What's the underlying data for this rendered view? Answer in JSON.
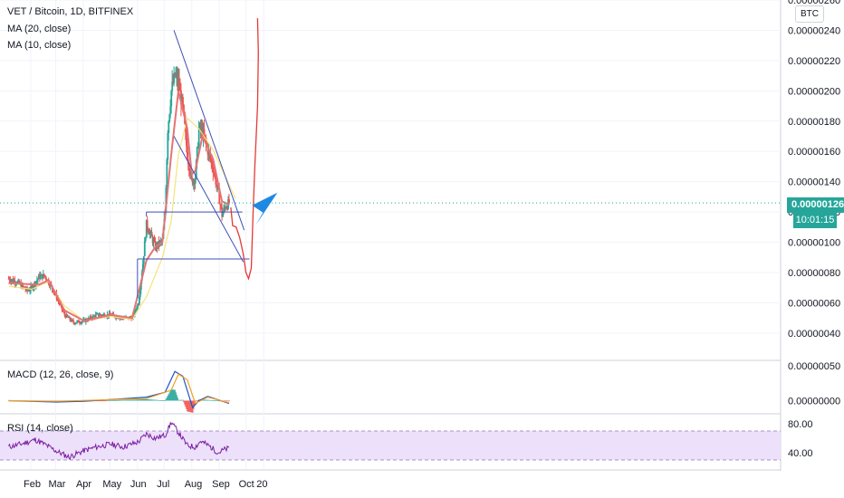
{
  "legend": {
    "title": "VET / Bitcoin, 1D, BITFINEX",
    "ma20": "MA (20, close)",
    "ma10": "MA (10, close)",
    "macd": "MACD (12, 26, close, 9)",
    "rsi": "RSI (14, close)"
  },
  "currency": "BTC",
  "last_price": "0.00000126",
  "countdown": "10:01:15",
  "colors": {
    "up": "#26a69a",
    "down": "#ef5350",
    "ma20": "#e57373",
    "ma10": "#f5e37a",
    "trendline": "#3f51b5",
    "drawing": "#e53935",
    "arrow": "#1e88e5",
    "macd_line": "#1e53c9",
    "signal_line": "#f0a020",
    "rsi_line": "#7b1fa2",
    "rsi_band": "#ede0fa"
  },
  "chart_data": {
    "type": "candlestick",
    "title": "VET / Bitcoin, 1D, BITFINEX",
    "ylim": [
      2.2e-07,
      2.6e-06
    ],
    "y_ticks": [
      "0.00000040",
      "0.00000060",
      "0.00000080",
      "0.00000100",
      "0.00000120",
      "0.00000140",
      "0.00000160",
      "0.00000180",
      "0.00000200",
      "0.00000220",
      "0.00000240",
      "0.00000260"
    ],
    "x_ticks": [
      "Feb",
      "Mar",
      "Apr",
      "May",
      "Jun",
      "Jul",
      "Aug",
      "Sep",
      "Oct",
      "20"
    ],
    "close_points": [
      [
        "Jan 6",
        7.6e-07
      ],
      [
        "Jan 15",
        7.4e-07
      ],
      [
        "Jan 27",
        6.8e-07
      ],
      [
        "Feb 1",
        7e-07
      ],
      [
        "Feb 9",
        7.7e-07
      ],
      [
        "Feb 15",
        7.8e-07
      ],
      [
        "Feb 20",
        7.4e-07
      ],
      [
        "Mar 1",
        6.4e-07
      ],
      [
        "Mar 10",
        5.2e-07
      ],
      [
        "Mar 20",
        4.7e-07
      ],
      [
        "Apr 1",
        4.8e-07
      ],
      [
        "Apr 15",
        5.2e-07
      ],
      [
        "May 1",
        5.2e-07
      ],
      [
        "May 15",
        5e-07
      ],
      [
        "May 25",
        5e-07
      ],
      [
        "Jun 1",
        6e-07
      ],
      [
        "Jun 6",
        8.6e-07
      ],
      [
        "Jun 10",
        1.12e-06
      ],
      [
        "Jun 20",
        9.7e-07
      ],
      [
        "Jun 28",
        1.01e-06
      ],
      [
        "Jul 1",
        1.2e-06
      ],
      [
        "Jul 4",
        1.75e-06
      ],
      [
        "Jul 8",
        2e-06
      ],
      [
        "Jul 12",
        2.1e-06
      ],
      [
        "Jul 16",
        2.05e-06
      ],
      [
        "Jul 21",
        1.88e-06
      ],
      [
        "Jul 26",
        1.58e-06
      ],
      [
        "Jul 31",
        1.4e-06
      ],
      [
        "Aug 4",
        1.43e-06
      ],
      [
        "Aug 8",
        1.75e-06
      ],
      [
        "Aug 12",
        1.73e-06
      ],
      [
        "Aug 18",
        1.61e-06
      ],
      [
        "Aug 24",
        1.49e-06
      ],
      [
        "Aug 30",
        1.32e-06
      ],
      [
        "Sep 3",
        1.18e-06
      ],
      [
        "Sep 7",
        1.24e-06
      ],
      [
        "Sep 11",
        1.26e-06
      ]
    ],
    "ma20_points": [
      [
        "Jan 6",
        7.1e-07
      ],
      [
        "Feb 1",
        6.9e-07
      ],
      [
        "Feb 20",
        7.4e-07
      ],
      [
        "Mar 10",
        5.8e-07
      ],
      [
        "Apr 1",
        4.8e-07
      ],
      [
        "May 1",
        5.1e-07
      ],
      [
        "May 25",
        4.9e-07
      ],
      [
        "Jun 10",
        6.4e-07
      ],
      [
        "Jun 28",
        9e-07
      ],
      [
        "Jul 8",
        1.14e-06
      ],
      [
        "Jul 16",
        1.58e-06
      ],
      [
        "Jul 26",
        1.82e-06
      ],
      [
        "Aug 8",
        1.75e-06
      ],
      [
        "Aug 24",
        1.61e-06
      ],
      [
        "Sep 11",
        1.38e-06
      ],
      [
        "Sep 18",
        1.29e-06
      ]
    ],
    "ma10_points": [
      [
        "Jan 6",
        7.3e-07
      ],
      [
        "Feb 9",
        7.2e-07
      ],
      [
        "Feb 20",
        7.5e-07
      ],
      [
        "Mar 10",
        5.5e-07
      ],
      [
        "Apr 1",
        4.8e-07
      ],
      [
        "May 1",
        5.2e-07
      ],
      [
        "May 25",
        5e-07
      ],
      [
        "Jun 10",
        8.8e-07
      ],
      [
        "Jun 20",
        9.7e-07
      ],
      [
        "Jun 28",
        1e-06
      ],
      [
        "Jul 8",
        1.58e-06
      ],
      [
        "Jul 16",
        2e-06
      ],
      [
        "Jul 26",
        1.75e-06
      ],
      [
        "Jul 31",
        1.45e-06
      ],
      [
        "Aug 4",
        1.47e-06
      ],
      [
        "Aug 12",
        1.7e-06
      ],
      [
        "Aug 24",
        1.55e-06
      ],
      [
        "Sep 3",
        1.27e-06
      ],
      [
        "Sep 11",
        1.25e-06
      ]
    ],
    "macd": {
      "ylim": [
        -1.5e-07,
        5e-07
      ],
      "y_ticks": [
        "0.00000000",
        "0.00000050"
      ],
      "macd_points": [
        [
          "Jan 6",
          0.0
        ],
        [
          "Mar 1",
          -2e-08
        ],
        [
          "Apr 1",
          -1e-08
        ],
        [
          "Jun 10",
          5e-08
        ],
        [
          "Jul 1",
          1.2e-07
        ],
        [
          "Jul 12",
          4.2e-07
        ],
        [
          "Jul 21",
          3.5e-07
        ],
        [
          "Aug 1",
          -1e-07
        ],
        [
          "Aug 8",
          0.0
        ],
        [
          "Aug 18",
          6e-08
        ],
        [
          "Sep 11",
          -4e-08
        ]
      ],
      "signal_points": [
        [
          "Jan 6",
          0.0
        ],
        [
          "Mar 1",
          -1e-08
        ],
        [
          "Jun 10",
          3e-08
        ],
        [
          "Jul 8",
          1.5e-07
        ],
        [
          "Jul 16",
          3.8e-07
        ],
        [
          "Jul 26",
          3e-07
        ],
        [
          "Aug 4",
          -4e-08
        ],
        [
          "Aug 18",
          5e-08
        ],
        [
          "Sep 11",
          -3e-08
        ]
      ]
    },
    "rsi": {
      "ylim": [
        20,
        90
      ],
      "y_ticks": [
        "40.00",
        "80.00"
      ],
      "band": [
        30,
        70
      ],
      "points": [
        [
          "Jan 6",
          48
        ],
        [
          "Jan 20",
          52
        ],
        [
          "Feb 5",
          58
        ],
        [
          "Feb 15",
          52
        ],
        [
          "Mar 1",
          42
        ],
        [
          "Mar 15",
          34
        ],
        [
          "Apr 1",
          43
        ],
        [
          "Apr 15",
          48
        ],
        [
          "May 1",
          52
        ],
        [
          "May 15",
          48
        ],
        [
          "Jun 1",
          55
        ],
        [
          "Jun 10",
          66
        ],
        [
          "Jun 20",
          60
        ],
        [
          "Jul 1",
          64
        ],
        [
          "Jul 8",
          82
        ],
        [
          "Jul 16",
          68
        ],
        [
          "Jul 26",
          50
        ],
        [
          "Aug 4",
          48
        ],
        [
          "Aug 10",
          56
        ],
        [
          "Aug 20",
          49
        ],
        [
          "Aug 30",
          40
        ],
        [
          "Sep 5",
          44
        ],
        [
          "Sep 11",
          46
        ]
      ]
    }
  }
}
